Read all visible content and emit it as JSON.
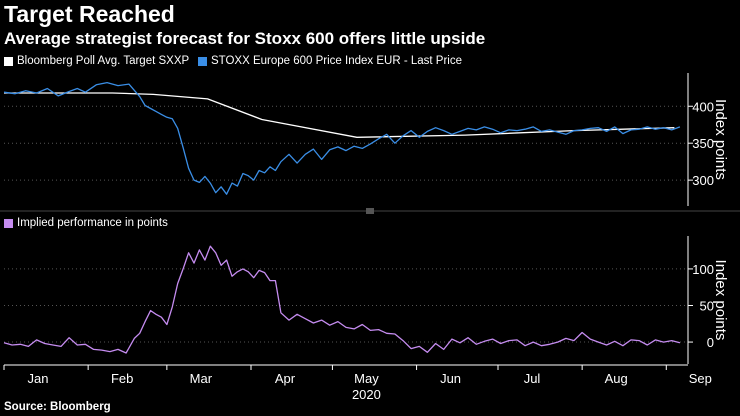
{
  "header": {
    "title": "Target Reached",
    "subtitle": "Average strategist forecast for Stoxx 600 offers little upside"
  },
  "source": "Source: Bloomberg",
  "colors": {
    "target": "#ffffff",
    "index": "#3a8ee6",
    "implied": "#c58cf0",
    "grid": "#555555",
    "background": "#000000"
  },
  "chart_data": [
    {
      "type": "line",
      "ylabel": "Index points",
      "ylim": [
        265,
        445
      ],
      "yticks": [
        300,
        350,
        400
      ],
      "x_domain_days": [
        0,
        252
      ],
      "series": [
        {
          "name": "Bloomberg Poll Avg. Target SXXP",
          "legend": "Bloomberg Poll Avg. Target SXXP",
          "x": [
            0,
            40,
            55,
            75,
            95,
            130,
            170,
            210,
            247
          ],
          "y": [
            418,
            418,
            416,
            410,
            382,
            358,
            361,
            367,
            371
          ]
        },
        {
          "name": "STOXX Europe 600 Price Index EUR - Last Price",
          "legend": "STOXX Europe 600 Price Index EUR - Last Price",
          "x": [
            0,
            4,
            8,
            12,
            16,
            20,
            24,
            27,
            30,
            34,
            38,
            42,
            46,
            50,
            52,
            54,
            56,
            58,
            60,
            62,
            64,
            66,
            68,
            70,
            72,
            74,
            76,
            78,
            80,
            82,
            84,
            86,
            88,
            90,
            92,
            94,
            96,
            98,
            100,
            102,
            105,
            108,
            111,
            114,
            117,
            120,
            123,
            126,
            129,
            132,
            135,
            138,
            141,
            144,
            147,
            150,
            153,
            156,
            159,
            162,
            165,
            168,
            171,
            174,
            177,
            180,
            183,
            186,
            189,
            192,
            195,
            198,
            201,
            204,
            207,
            210,
            213,
            216,
            219,
            222,
            225,
            228,
            231,
            234,
            237,
            240,
            243,
            246,
            249
          ],
          "y": [
            419,
            417,
            421,
            418,
            424,
            414,
            420,
            424,
            419,
            429,
            432,
            428,
            430,
            413,
            401,
            397,
            393,
            389,
            385,
            383,
            370,
            344,
            316,
            300,
            297,
            305,
            296,
            283,
            291,
            281,
            296,
            292,
            309,
            306,
            300,
            313,
            310,
            318,
            313,
            325,
            335,
            323,
            335,
            342,
            328,
            341,
            345,
            340,
            346,
            343,
            349,
            356,
            362,
            350,
            360,
            367,
            358,
            366,
            371,
            367,
            362,
            366,
            370,
            368,
            372,
            369,
            364,
            368,
            367,
            369,
            372,
            366,
            368,
            365,
            362,
            367,
            368,
            370,
            371,
            366,
            372,
            363,
            368,
            369,
            372,
            369,
            371,
            368,
            372
          ]
        }
      ]
    },
    {
      "type": "line",
      "ylabel": "Index points",
      "ylim": [
        -30,
        145
      ],
      "yticks": [
        0,
        50,
        100
      ],
      "xlabel": "2020",
      "x_domain_days": [
        0,
        252
      ],
      "x_tick_days": [
        0,
        31,
        60,
        91,
        121,
        152,
        182,
        213,
        244
      ],
      "categories": [
        "Jan",
        "Feb",
        "Mar",
        "Apr",
        "May",
        "Jun",
        "Jul",
        "Aug",
        "Sep"
      ],
      "series": [
        {
          "name": "Implied performance in points",
          "legend": "Implied performance in points",
          "x": [
            0,
            3,
            6,
            9,
            12,
            15,
            18,
            21,
            24,
            27,
            30,
            33,
            36,
            39,
            42,
            45,
            48,
            50,
            52,
            54,
            56,
            58,
            60,
            62,
            64,
            66,
            68,
            70,
            72,
            74,
            76,
            78,
            80,
            82,
            84,
            86,
            88,
            90,
            92,
            94,
            96,
            98,
            100,
            102,
            105,
            108,
            111,
            114,
            117,
            120,
            123,
            126,
            129,
            132,
            135,
            138,
            141,
            144,
            147,
            150,
            153,
            156,
            159,
            162,
            165,
            168,
            171,
            174,
            177,
            180,
            183,
            186,
            189,
            192,
            195,
            198,
            201,
            204,
            207,
            210,
            213,
            216,
            219,
            222,
            225,
            228,
            231,
            234,
            237,
            240,
            243,
            246,
            249
          ],
          "y": [
            -1,
            -4,
            -3,
            -6,
            3,
            -2,
            -4,
            -6,
            6,
            -4,
            -3,
            -10,
            -11,
            -13,
            -10,
            -15,
            5,
            12,
            28,
            43,
            38,
            34,
            24,
            48,
            80,
            100,
            122,
            108,
            126,
            112,
            131,
            122,
            105,
            112,
            90,
            96,
            100,
            96,
            88,
            98,
            95,
            84,
            84,
            40,
            30,
            38,
            32,
            26,
            30,
            23,
            28,
            20,
            18,
            24,
            16,
            17,
            12,
            11,
            2,
            -9,
            -6,
            -14,
            -2,
            -10,
            4,
            -1,
            6,
            -3,
            1,
            4,
            -2,
            2,
            3,
            -5,
            0,
            -5,
            -3,
            0,
            5,
            2,
            13,
            4,
            0,
            -4,
            1,
            -5,
            3,
            2,
            -4,
            3,
            0,
            2,
            -1
          ]
        }
      ]
    }
  ]
}
